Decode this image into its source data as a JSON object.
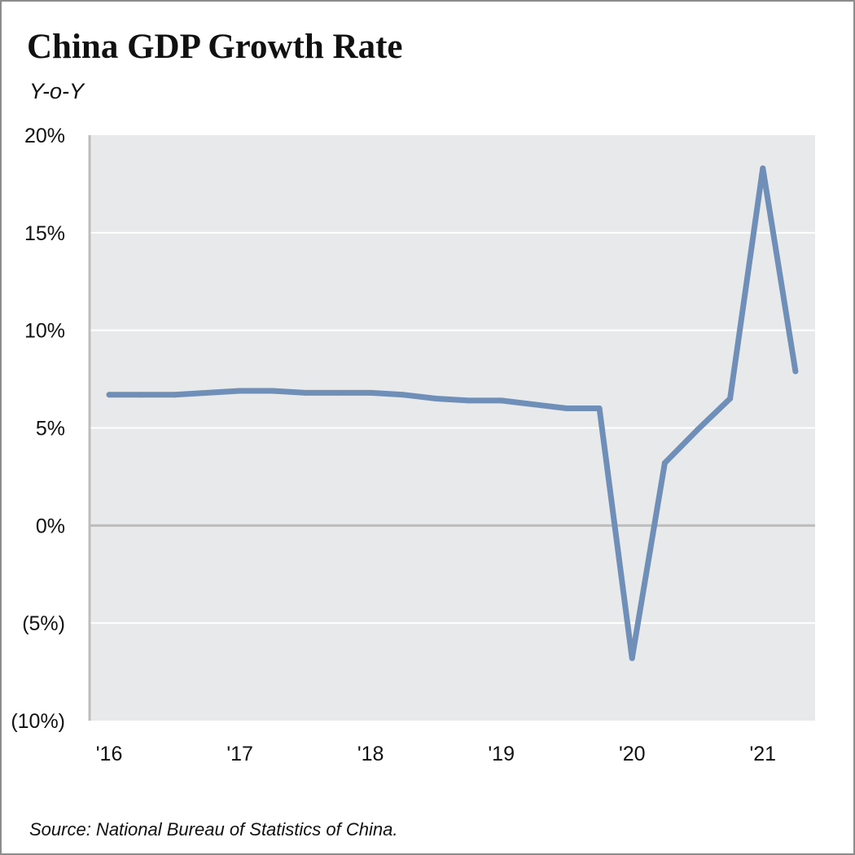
{
  "title": "China GDP Growth Rate",
  "subtitle": "Y-o-Y",
  "source": "Source: National Bureau of Statistics of China.",
  "colors": {
    "line": "#6f8fb8",
    "plot_background": "#e8e9ea",
    "gridline": "#ffffff",
    "zero_line": "#bdbdbd",
    "axis_line": "#bdbdbd"
  },
  "chart_data": {
    "type": "line",
    "title": "China GDP Growth Rate",
    "subtitle": "Y-o-Y",
    "xlabel": "",
    "ylabel": "",
    "ylim": [
      -10,
      20
    ],
    "grid": true,
    "y_ticks": [
      {
        "value": 20,
        "label": "20%"
      },
      {
        "value": 15,
        "label": "15%"
      },
      {
        "value": 10,
        "label": "10%"
      },
      {
        "value": 5,
        "label": "5%"
      },
      {
        "value": 0,
        "label": "0%"
      },
      {
        "value": -5,
        "label": "(5%)"
      },
      {
        "value": -10,
        "label": "(10%)"
      }
    ],
    "x_ticks": [
      {
        "value": 2016,
        "label": "'16"
      },
      {
        "value": 2017,
        "label": "'17"
      },
      {
        "value": 2018,
        "label": "'18"
      },
      {
        "value": 2019,
        "label": "'19"
      },
      {
        "value": 2020,
        "label": "'20"
      },
      {
        "value": 2021,
        "label": "'21"
      }
    ],
    "xlim": [
      2015.85,
      2021.4
    ],
    "x": [
      2016.0,
      2016.25,
      2016.5,
      2016.75,
      2017.0,
      2017.25,
      2017.5,
      2017.75,
      2018.0,
      2018.25,
      2018.5,
      2018.75,
      2019.0,
      2019.25,
      2019.5,
      2019.75,
      2020.0,
      2020.25,
      2020.5,
      2020.75,
      2021.0,
      2021.25
    ],
    "series": [
      {
        "values": [
          6.7,
          6.7,
          6.7,
          6.8,
          6.9,
          6.9,
          6.8,
          6.8,
          6.8,
          6.7,
          6.5,
          6.4,
          6.4,
          6.2,
          6.0,
          6.0,
          -6.8,
          3.2,
          4.9,
          6.5,
          18.3,
          7.9
        ]
      }
    ]
  }
}
